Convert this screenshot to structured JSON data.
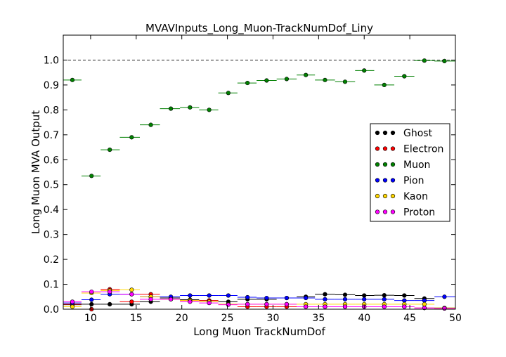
{
  "chart_data": {
    "type": "scatter",
    "title": "MVAVInputs_Long_Muon-TrackNumDof_Liny",
    "xlabel": "Long Muon TrackNumDof",
    "ylabel": "Long Muon MVA Output",
    "xlim": [
      7,
      50
    ],
    "ylim": [
      0.0,
      1.1
    ],
    "x_ticks": [
      "10",
      "15",
      "20",
      "25",
      "30",
      "35",
      "40",
      "45",
      "50"
    ],
    "y_ticks": [
      "0.0",
      "0.1",
      "0.2",
      "0.3",
      "0.4",
      "0.5",
      "0.6",
      "0.7",
      "0.8",
      "0.9",
      "1.0"
    ],
    "reference_line_y": 1.0,
    "legend_position": "center-right",
    "grid": false,
    "x": [
      8.0,
      10.1,
      12.1,
      14.5,
      16.6,
      18.8,
      20.9,
      23.0,
      25.1,
      27.2,
      29.3,
      31.5,
      33.6,
      35.7,
      37.9,
      40.0,
      42.2,
      44.4,
      46.6,
      48.8
    ],
    "bin_edges": [
      7,
      9.0,
      11.1,
      13.2,
      15.4,
      17.6,
      19.8,
      21.9,
      24.0,
      26.1,
      28.2,
      30.4,
      32.6,
      34.6,
      36.8,
      39.0,
      41.1,
      43.3,
      45.5,
      47.7,
      50
    ],
    "series": [
      {
        "name": "Ghost",
        "color": "#000000",
        "values": [
          0.018,
          0.02,
          0.02,
          0.02,
          0.03,
          0.045,
          0.038,
          0.035,
          0.03,
          0.04,
          0.04,
          0.045,
          0.05,
          0.06,
          0.058,
          0.055,
          0.056,
          0.055,
          0.043,
          0.005
        ]
      },
      {
        "name": "Electron",
        "color": "#ff0000",
        "values": [
          0.02,
          0.0,
          0.08,
          0.03,
          0.06,
          0.04,
          0.035,
          0.035,
          0.02,
          0.01,
          0.01,
          0.01,
          0.01,
          0.01,
          0.01,
          0.01,
          0.01,
          0.01,
          0.005,
          0.003
        ]
      },
      {
        "name": "Muon",
        "color": "#008000",
        "values": [
          0.92,
          0.535,
          0.64,
          0.69,
          0.74,
          0.805,
          0.81,
          0.8,
          0.868,
          0.908,
          0.918,
          0.924,
          0.94,
          0.92,
          0.913,
          0.958,
          0.9,
          0.935,
          0.998,
          0.996
        ]
      },
      {
        "name": "Pion",
        "color": "#0000ff",
        "values": [
          0.025,
          0.038,
          0.06,
          0.06,
          0.05,
          0.05,
          0.055,
          0.055,
          0.055,
          0.048,
          0.045,
          0.045,
          0.045,
          0.04,
          0.04,
          0.04,
          0.04,
          0.035,
          0.035,
          0.05
        ]
      },
      {
        "name": "Kaon",
        "color": "#ffd700",
        "values": [
          0.01,
          0.065,
          0.075,
          0.078,
          0.05,
          0.04,
          0.035,
          0.03,
          0.02,
          0.02,
          0.02,
          0.02,
          0.02,
          0.02,
          0.02,
          0.02,
          0.02,
          0.02,
          0.02,
          0.005
        ]
      },
      {
        "name": "Proton",
        "color": "#ff00ff",
        "values": [
          0.03,
          0.07,
          0.07,
          0.06,
          0.04,
          0.04,
          0.03,
          0.025,
          0.018,
          0.02,
          0.02,
          0.02,
          0.01,
          0.01,
          0.01,
          0.01,
          0.01,
          0.01,
          0.005,
          0.003
        ]
      }
    ]
  }
}
